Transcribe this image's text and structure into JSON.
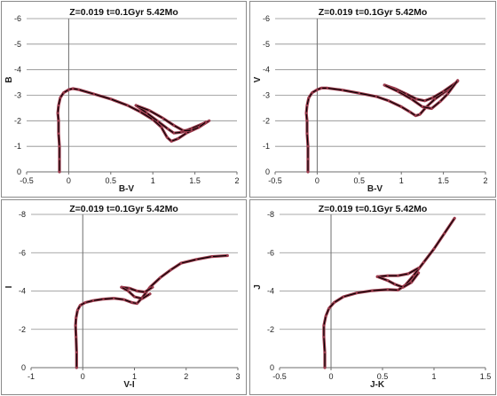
{
  "chart_data": [
    {
      "type": "line",
      "title": "Z=0.019  t=0.1Gyr  5.42Mo",
      "xlabel": "B-V",
      "ylabel": "B",
      "xlim": [
        -0.5,
        2
      ],
      "ylim": [
        0,
        -6
      ],
      "y_reversed": true,
      "xticks": [
        -0.5,
        0,
        0.5,
        1,
        1.5,
        2
      ],
      "xtick_labels": [
        "-0.5",
        "0",
        "0.5",
        "1",
        "1.5",
        "2"
      ],
      "yticks": [
        0,
        -1,
        -2,
        -3,
        -4,
        -5,
        -6
      ],
      "ytick_labels": [
        "0",
        "-1",
        "-2",
        "-3",
        "-4",
        "-5",
        "-6"
      ],
      "grid": "horizontal",
      "colors": {
        "model": "#9b3a4c",
        "track": "#000000"
      },
      "series": [
        {
          "x": [
            -0.11,
            -0.11,
            -0.11,
            -0.12,
            -0.12,
            -0.13,
            -0.12,
            -0.1,
            -0.06,
            0.0,
            0.05,
            0.12,
            0.3,
            0.5,
            0.7,
            0.85,
            1.0,
            1.1,
            1.17,
            1.22,
            1.3,
            1.4,
            1.55,
            1.67
          ],
          "y": [
            0,
            -0.5,
            -1.0,
            -1.5,
            -2.0,
            -2.3,
            -2.6,
            -2.9,
            -3.1,
            -3.22,
            -3.26,
            -3.22,
            -3.05,
            -2.85,
            -2.6,
            -2.35,
            -2.05,
            -1.75,
            -1.35,
            -1.2,
            -1.3,
            -1.52,
            -1.75,
            -2.0
          ]
        },
        {
          "x": [
            0.8,
            0.93,
            1.06,
            1.18,
            1.25,
            1.34,
            1.46,
            1.62
          ],
          "y": [
            -2.6,
            -2.3,
            -1.98,
            -1.68,
            -1.52,
            -1.55,
            -1.7,
            -1.92
          ]
        },
        {
          "x": [
            0.8,
            0.96,
            1.12,
            1.25,
            1.36,
            1.46,
            1.55,
            1.63
          ],
          "y": [
            -2.6,
            -2.4,
            -2.1,
            -1.82,
            -1.62,
            -1.62,
            -1.75,
            -1.95
          ]
        }
      ]
    },
    {
      "type": "line",
      "title": "Z=0.019  t=0.1Gyr  5.42Mo",
      "xlabel": "B-V",
      "ylabel": "V",
      "xlim": [
        -0.5,
        2
      ],
      "ylim": [
        0,
        -6
      ],
      "y_reversed": true,
      "xticks": [
        -0.5,
        0,
        0.5,
        1,
        1.5,
        2
      ],
      "xtick_labels": [
        "-0.5",
        "0",
        "0.5",
        "1",
        "1.5",
        "2"
      ],
      "yticks": [
        0,
        -1,
        -2,
        -3,
        -4,
        -5,
        -6
      ],
      "ytick_labels": [
        "0",
        "-1",
        "-2",
        "-3",
        "-4",
        "-5",
        "-6"
      ],
      "grid": "horizontal",
      "colors": {
        "model": "#9b3a4c",
        "track": "#000000"
      },
      "series": [
        {
          "x": [
            -0.11,
            -0.11,
            -0.11,
            -0.12,
            -0.12,
            -0.13,
            -0.12,
            -0.1,
            -0.06,
            0.0,
            0.05,
            0.12,
            0.3,
            0.5,
            0.7,
            0.85,
            1.0,
            1.1,
            1.17,
            1.22,
            1.3,
            1.4,
            1.55,
            1.67
          ],
          "y": [
            0,
            -0.5,
            -1.0,
            -1.5,
            -2.0,
            -2.3,
            -2.6,
            -2.9,
            -3.1,
            -3.22,
            -3.28,
            -3.28,
            -3.2,
            -3.08,
            -2.95,
            -2.78,
            -2.55,
            -2.35,
            -2.2,
            -2.25,
            -2.55,
            -2.85,
            -3.2,
            -3.55
          ]
        },
        {
          "x": [
            0.8,
            0.93,
            1.06,
            1.18,
            1.28,
            1.37,
            1.5,
            1.66
          ],
          "y": [
            -3.4,
            -3.25,
            -3.05,
            -2.85,
            -2.78,
            -2.9,
            -3.15,
            -3.52
          ]
        },
        {
          "x": [
            0.8,
            0.96,
            1.12,
            1.25,
            1.36,
            1.46,
            1.55,
            1.67
          ],
          "y": [
            -3.4,
            -3.15,
            -2.85,
            -2.55,
            -2.48,
            -2.75,
            -3.05,
            -3.58
          ]
        }
      ]
    },
    {
      "type": "line",
      "title": "Z=0.019  t=0.1Gyr  5.42Mo",
      "xlabel": "V-I",
      "ylabel": "I",
      "xlim": [
        -1,
        3
      ],
      "ylim": [
        0,
        -8
      ],
      "y_reversed": true,
      "xticks": [
        -1,
        0,
        1,
        2,
        3
      ],
      "xtick_labels": [
        "-1",
        "0",
        "1",
        "2",
        "3"
      ],
      "yticks": [
        0,
        -2,
        -4,
        -6,
        -8
      ],
      "ytick_labels": [
        "0",
        "-2",
        "-4",
        "-6",
        "-8"
      ],
      "grid": "horizontal",
      "colors": {
        "model": "#9b3a4c",
        "track": "#000000"
      },
      "series": [
        {
          "x": [
            -0.12,
            -0.12,
            -0.13,
            -0.14,
            -0.13,
            -0.1,
            -0.05,
            0.05,
            0.2,
            0.4,
            0.6,
            0.8,
            0.95,
            1.05,
            1.15,
            1.3,
            1.5,
            1.7,
            1.9,
            2.2,
            2.5,
            2.8
          ],
          "y": [
            0,
            -0.8,
            -1.6,
            -2.2,
            -2.6,
            -3.0,
            -3.25,
            -3.4,
            -3.5,
            -3.58,
            -3.62,
            -3.55,
            -3.4,
            -3.35,
            -3.65,
            -4.2,
            -4.7,
            -5.1,
            -5.45,
            -5.65,
            -5.8,
            -5.85
          ]
        },
        {
          "x": [
            0.75,
            0.9,
            1.05,
            1.2,
            1.35
          ],
          "y": [
            -4.2,
            -4.15,
            -4.0,
            -3.95,
            -4.2
          ]
        },
        {
          "x": [
            0.75,
            0.88,
            1.0,
            1.15,
            1.3
          ],
          "y": [
            -4.2,
            -4.0,
            -3.7,
            -3.6,
            -3.85
          ]
        }
      ]
    },
    {
      "type": "line",
      "title": "Z=0.019  t=0.1Gyr  5.42Mo",
      "xlabel": "J-K",
      "ylabel": "J",
      "xlim": [
        -0.5,
        1.5
      ],
      "ylim": [
        0,
        -8
      ],
      "y_reversed": true,
      "xticks": [
        -0.5,
        0,
        0.5,
        1,
        1.5
      ],
      "xtick_labels": [
        "-0.5",
        "0",
        "0.5",
        "1",
        "1.5"
      ],
      "yticks": [
        0,
        -2,
        -4,
        -6,
        -8
      ],
      "ytick_labels": [
        "0",
        "-2",
        "-4",
        "-6",
        "-8"
      ],
      "grid": "horizontal",
      "colors": {
        "model": "#9b3a4c",
        "track": "#000000"
      },
      "series": [
        {
          "x": [
            -0.06,
            -0.06,
            -0.07,
            -0.07,
            -0.05,
            -0.02,
            0.03,
            0.12,
            0.25,
            0.4,
            0.55,
            0.65,
            0.72,
            0.8,
            0.9,
            1.0,
            1.1,
            1.2
          ],
          "y": [
            0,
            -0.8,
            -1.6,
            -2.2,
            -2.7,
            -3.1,
            -3.4,
            -3.7,
            -3.9,
            -4.02,
            -4.08,
            -4.05,
            -4.3,
            -4.8,
            -5.5,
            -6.2,
            -7.0,
            -7.8
          ]
        },
        {
          "x": [
            0.45,
            0.55,
            0.65,
            0.75,
            0.85
          ],
          "y": [
            -4.75,
            -4.8,
            -4.8,
            -4.9,
            -5.2
          ]
        },
        {
          "x": [
            0.45,
            0.55,
            0.62,
            0.7,
            0.78,
            0.85
          ],
          "y": [
            -4.75,
            -4.55,
            -4.35,
            -4.2,
            -4.45,
            -4.95
          ]
        }
      ]
    }
  ]
}
